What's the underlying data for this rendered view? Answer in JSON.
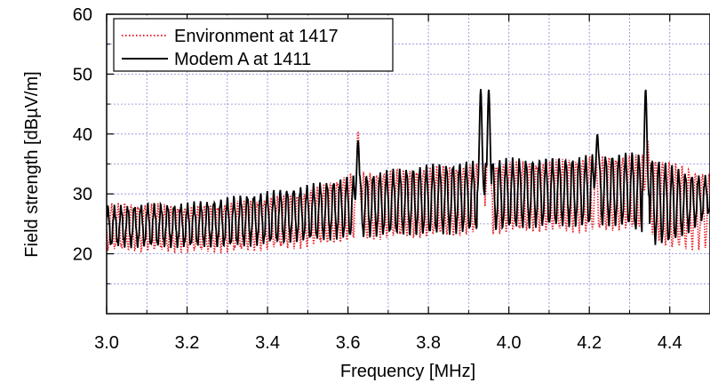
{
  "chart_data": {
    "type": "line",
    "title": "",
    "xlabel": "Frequency [MHz]",
    "ylabel": "Field strength [dBµV/m]",
    "xlim": [
      3.0,
      4.5
    ],
    "ylim": [
      10,
      60
    ],
    "xticks": [
      "3.0",
      "3.2",
      "3.4",
      "3.6",
      "3.8",
      "4.0",
      "4.2",
      "4.4"
    ],
    "yticks": [
      "20",
      "30",
      "40",
      "50",
      "60"
    ],
    "grid": true,
    "grid_color": "#8a8ad6",
    "legend_position": "top-left",
    "series": [
      {
        "name": "Environment at 1417",
        "color": "#e8202a",
        "style": "dotted",
        "envelope": {
          "x": [
            3.0,
            3.1,
            3.2,
            3.3,
            3.4,
            3.5,
            3.6,
            3.7,
            3.8,
            3.9,
            4.0,
            4.1,
            4.2,
            4.3,
            4.35,
            4.4,
            4.45,
            4.5
          ],
          "low": [
            21,
            20.8,
            20.6,
            20.6,
            21,
            21.5,
            22.5,
            23,
            23.2,
            23.5,
            24,
            24,
            24,
            24.5,
            24,
            21,
            21,
            21.5
          ],
          "high": [
            28,
            28,
            27.5,
            28,
            29,
            30,
            33,
            33.5,
            34,
            34.5,
            35,
            35,
            36,
            36,
            36,
            35,
            34,
            33
          ]
        },
        "peaks": [
          {
            "x": 3.625,
            "y": 40.5
          },
          {
            "x": 3.93,
            "y": 47.5
          },
          {
            "x": 3.95,
            "y": 47.5
          },
          {
            "x": 4.345,
            "y": 39
          }
        ]
      },
      {
        "name": "Modem A at 1411",
        "color": "#000000",
        "style": "solid",
        "envelope": {
          "x": [
            3.0,
            3.1,
            3.2,
            3.3,
            3.4,
            3.5,
            3.6,
            3.7,
            3.8,
            3.9,
            4.0,
            4.1,
            4.2,
            4.3,
            4.35,
            4.4,
            4.45,
            4.5
          ],
          "low": [
            21.5,
            21.5,
            21.5,
            21.5,
            22,
            22.5,
            23,
            23.5,
            23.5,
            24,
            24.5,
            25,
            25,
            25,
            22,
            22,
            24,
            27
          ],
          "high": [
            27.5,
            28,
            28,
            29,
            30,
            31,
            32.5,
            33.5,
            34.5,
            35,
            35.5,
            35.5,
            36,
            36.5,
            36,
            34.5,
            33,
            32.5
          ]
        },
        "peaks": [
          {
            "x": 3.625,
            "y": 39
          },
          {
            "x": 3.93,
            "y": 47.5
          },
          {
            "x": 3.95,
            "y": 47.5
          },
          {
            "x": 4.22,
            "y": 40
          },
          {
            "x": 4.34,
            "y": 47.5
          }
        ]
      }
    ]
  }
}
